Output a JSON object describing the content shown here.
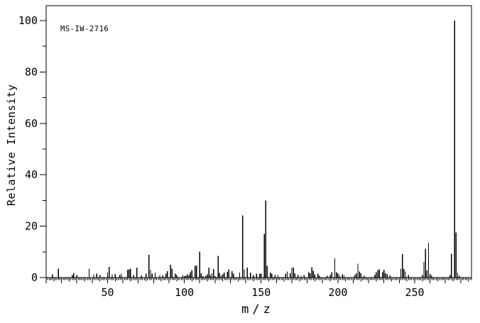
{
  "figure": {
    "id_label": "MS-IW-2716",
    "background_color": "#ffffff",
    "line_color": "#000000"
  },
  "chart_data": {
    "type": "bar",
    "subtype": "mass-spectrum-stick-plot",
    "title": "",
    "id_label": "MS-IW-2716",
    "xlabel": "m/z",
    "ylabel": "Relative Intensity",
    "xlim": [
      10,
      287
    ],
    "ylim": [
      0,
      105.8
    ],
    "x_major_tick_labels": [
      50,
      100,
      150,
      200,
      250
    ],
    "y_major_tick_labels": [
      0,
      20,
      40,
      60,
      80,
      100
    ],
    "x_minor_tick_step": 1,
    "x_medium_tick_step": 5,
    "x_major_tick_step": 10,
    "y_minor_tick_step": 10,
    "y_major_tick_step": 20,
    "grid": false,
    "legend": false,
    "frame": "full-box",
    "base_peak": {
      "mz": 276,
      "intensity": 100
    },
    "peaks": [
      [
        14,
        1.3
      ],
      [
        18,
        3.4
      ],
      [
        27,
        1.0
      ],
      [
        28,
        1.6
      ],
      [
        30,
        1.0
      ],
      [
        38,
        3.4
      ],
      [
        41,
        1.3
      ],
      [
        43,
        1.5
      ],
      [
        45,
        1.0
      ],
      [
        50,
        2.0
      ],
      [
        51,
        4.2
      ],
      [
        53,
        1.2
      ],
      [
        55,
        1.4
      ],
      [
        58,
        1.0
      ],
      [
        59,
        1.5
      ],
      [
        63,
        3.0
      ],
      [
        64,
        3.2
      ],
      [
        65,
        3.4
      ],
      [
        67,
        1.0
      ],
      [
        69,
        3.9
      ],
      [
        72,
        0.8
      ],
      [
        75,
        1.5
      ],
      [
        77,
        8.8
      ],
      [
        78,
        3.0
      ],
      [
        79,
        1.5
      ],
      [
        81,
        2.0
      ],
      [
        84,
        1.0
      ],
      [
        86,
        0.8
      ],
      [
        88,
        1.5
      ],
      [
        89,
        2.5
      ],
      [
        91,
        5.0
      ],
      [
        92,
        3.5
      ],
      [
        94,
        1.5
      ],
      [
        95,
        1.0
      ],
      [
        99,
        0.9
      ],
      [
        100,
        0.6
      ],
      [
        101,
        0.7
      ],
      [
        102,
        1.2
      ],
      [
        103,
        0.9
      ],
      [
        104,
        2.1
      ],
      [
        105,
        2.9
      ],
      [
        107,
        4.5
      ],
      [
        108,
        4.7
      ],
      [
        110,
        10.1
      ],
      [
        111,
        1.7
      ],
      [
        112,
        0.6
      ],
      [
        114,
        0.7
      ],
      [
        115,
        1.2
      ],
      [
        116,
        3.8
      ],
      [
        117,
        0.9
      ],
      [
        118,
        1.7
      ],
      [
        119,
        3.3
      ],
      [
        120,
        0.6
      ],
      [
        122,
        8.4
      ],
      [
        123,
        1.8
      ],
      [
        124,
        0.8
      ],
      [
        125,
        1.2
      ],
      [
        126,
        2.0
      ],
      [
        128,
        2.2
      ],
      [
        129,
        3.2
      ],
      [
        131,
        2.5
      ],
      [
        132,
        1.5
      ],
      [
        136,
        2.0
      ],
      [
        138,
        24.2
      ],
      [
        139,
        3.2
      ],
      [
        141,
        3.8
      ],
      [
        143,
        2.0
      ],
      [
        145,
        1.0
      ],
      [
        147,
        1.5
      ],
      [
        149,
        1.5
      ],
      [
        150,
        1.5
      ],
      [
        152,
        17.0
      ],
      [
        153,
        30.0
      ],
      [
        154,
        4.6
      ],
      [
        156,
        2.0
      ],
      [
        157,
        1.5
      ],
      [
        159,
        1.0
      ],
      [
        161,
        1.0
      ],
      [
        166,
        1.5
      ],
      [
        167,
        2.4
      ],
      [
        169,
        1.7
      ],
      [
        170,
        3.8
      ],
      [
        171,
        3.8
      ],
      [
        172,
        1.7
      ],
      [
        174,
        1.0
      ],
      [
        176,
        0.7
      ],
      [
        178,
        1.0
      ],
      [
        181,
        2.1
      ],
      [
        182,
        1.7
      ],
      [
        183,
        4.0
      ],
      [
        184,
        2.6
      ],
      [
        185,
        1.2
      ],
      [
        187,
        1.5
      ],
      [
        188,
        0.7
      ],
      [
        193,
        0.7
      ],
      [
        195,
        1.0
      ],
      [
        196,
        2.1
      ],
      [
        198,
        7.5
      ],
      [
        199,
        2.1
      ],
      [
        200,
        1.7
      ],
      [
        201,
        1.0
      ],
      [
        203,
        1.2
      ],
      [
        204,
        0.8
      ],
      [
        211,
        1.0
      ],
      [
        212,
        1.7
      ],
      [
        213,
        5.4
      ],
      [
        214,
        2.3
      ],
      [
        215,
        1.7
      ],
      [
        217,
        0.7
      ],
      [
        224,
        1.0
      ],
      [
        225,
        2.1
      ],
      [
        226,
        2.9
      ],
      [
        227,
        3.2
      ],
      [
        229,
        2.1
      ],
      [
        230,
        3.0
      ],
      [
        231,
        1.7
      ],
      [
        232,
        1.4
      ],
      [
        234,
        0.8
      ],
      [
        241,
        3.5
      ],
      [
        242,
        9.1
      ],
      [
        243,
        3.3
      ],
      [
        244,
        2.3
      ],
      [
        246,
        1.0
      ],
      [
        255,
        1.0
      ],
      [
        256,
        6.1
      ],
      [
        257,
        11.2
      ],
      [
        258,
        2.8
      ],
      [
        259,
        13.5
      ],
      [
        260,
        1.4
      ],
      [
        261,
        0.7
      ],
      [
        273,
        1.0
      ],
      [
        274,
        9.2
      ],
      [
        276,
        100.0
      ],
      [
        277,
        17.5
      ],
      [
        278,
        1.9
      ],
      [
        279,
        0.7
      ]
    ]
  }
}
